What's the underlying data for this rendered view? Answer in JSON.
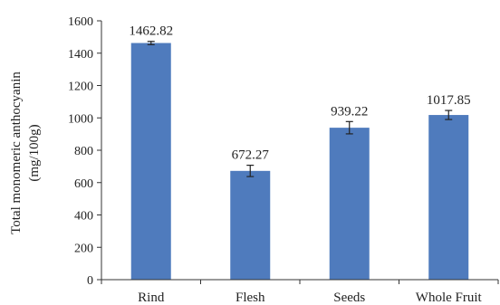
{
  "chart_data": {
    "type": "bar",
    "title": "",
    "xlabel": "",
    "ylabel_lines": [
      "Total monomeric anthocyanin",
      "(mg/100g)"
    ],
    "categories": [
      "Rind",
      "Flesh",
      "Seeds",
      "Whole Fruit"
    ],
    "values": [
      1462.82,
      672.27,
      939.22,
      1017.85
    ],
    "data_labels": [
      "1462.82",
      "672.27",
      "939.22",
      "1017.85"
    ],
    "error": [
      10,
      35,
      38,
      28
    ],
    "ylim": [
      0,
      1600
    ],
    "yticks": [
      "0",
      "200",
      "400",
      "600",
      "800",
      "1000",
      "1200",
      "1400",
      "1600"
    ],
    "grid": false,
    "bar_color": "#4f7bbd",
    "error_color": "#222222"
  }
}
